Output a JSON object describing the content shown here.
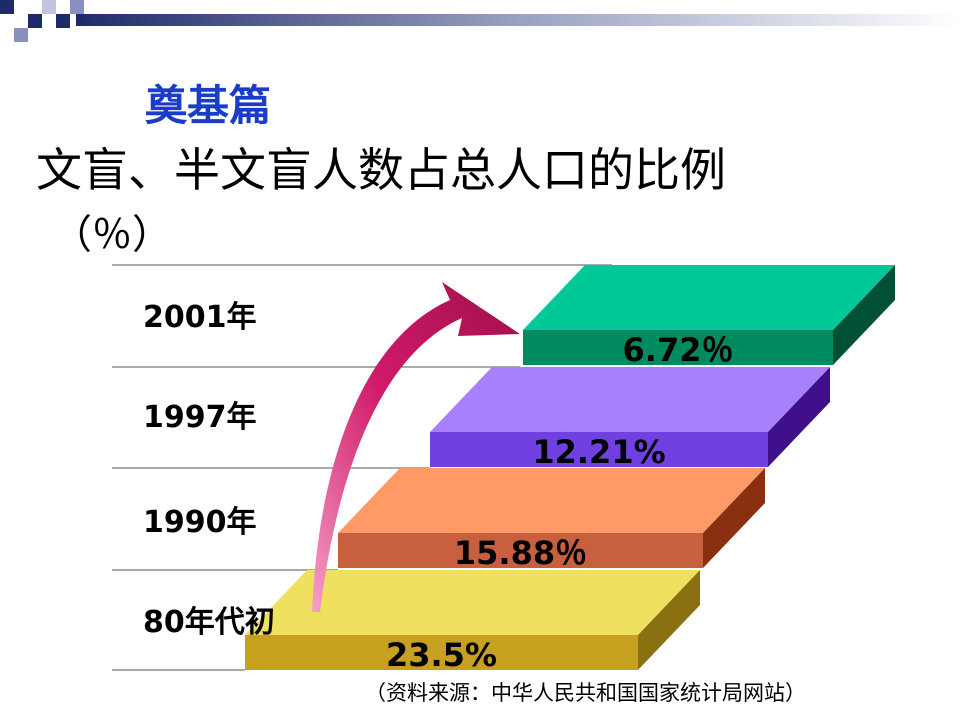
{
  "header": {
    "title": "奠基篇",
    "subtitle": "文盲、半文盲人数占总人口的比例",
    "unit": "（％）"
  },
  "rows": [
    {
      "period": "80年代初",
      "label": "23.5%"
    },
    {
      "period": "1990年",
      "label": "15.88％"
    },
    {
      "period": "1997年",
      "label": "12.21%"
    },
    {
      "period": "2001年",
      "label": "6.72％"
    }
  ],
  "source": "（资料来源：中华人民共和国国家统计局网站）"
}
